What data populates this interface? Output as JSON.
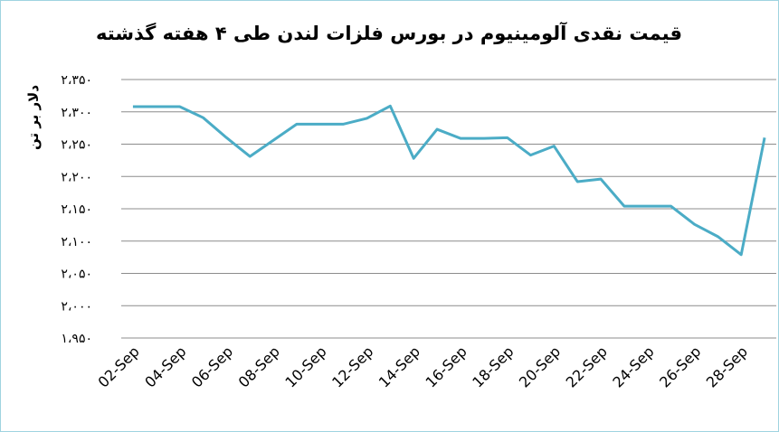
{
  "chart_data": {
    "type": "line",
    "title": "قیمت نقدی آلومینیوم در بورس فلزات لندن طی ۴ هفته گذشته",
    "y_label": "دلار بر تن",
    "categories": [
      "02-Sep",
      null,
      "04-Sep",
      null,
      "06-Sep",
      null,
      "08-Sep",
      null,
      "10-Sep",
      null,
      "12-Sep",
      null,
      "14-Sep",
      null,
      "16-Sep",
      null,
      "18-Sep",
      null,
      "20-Sep",
      null,
      "22-Sep",
      null,
      "24-Sep",
      null,
      "26-Sep",
      null,
      "28-Sep",
      null
    ],
    "series": [
      {
        "color": "#4bacc6",
        "values": [
          2308,
          2308,
          2308,
          2291,
          2260,
          2231,
          2256,
          2281,
          2281,
          2281,
          2290,
          2309,
          2228,
          2273,
          2259,
          2259,
          2260,
          2233,
          2247,
          2192,
          2196,
          2154,
          2154,
          2154,
          2126,
          2107,
          2079,
          2260
        ]
      }
    ],
    "ylim": [
      1950,
      2350
    ],
    "yticks": [
      {
        "value": 1950,
        "label": "۱،۹۵۰"
      },
      {
        "value": 2000,
        "label": "۲،۰۰۰"
      },
      {
        "value": 2050,
        "label": "۲،۰۵۰"
      },
      {
        "value": 2100,
        "label": "۲،۱۰۰"
      },
      {
        "value": 2150,
        "label": "۲،۱۵۰"
      },
      {
        "value": 2200,
        "label": "۲،۲۰۰"
      },
      {
        "value": 2250,
        "label": "۲،۲۵۰"
      },
      {
        "value": 2300,
        "label": "۲،۳۰۰"
      },
      {
        "value": 2350,
        "label": "۲،۳۵۰"
      }
    ],
    "grid": true
  }
}
